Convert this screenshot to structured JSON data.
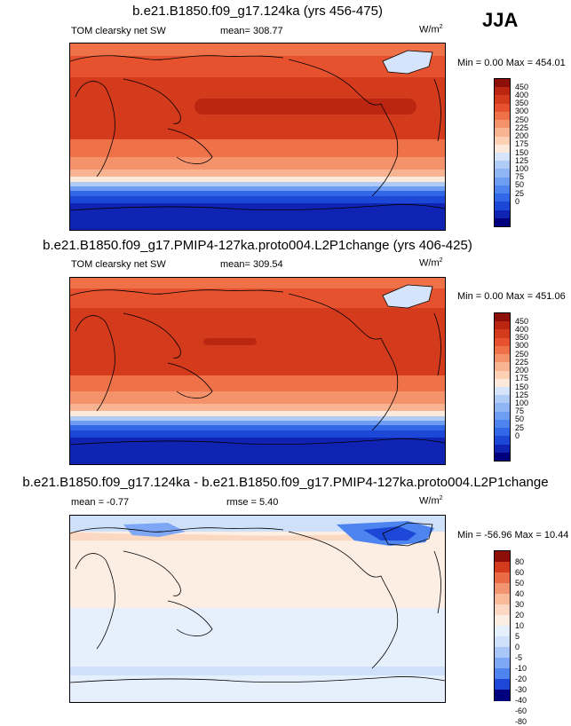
{
  "season": "JJA",
  "units": "W/m",
  "units_sup": "2",
  "colors": {
    "abs": [
      "#00007e",
      "#0f24b3",
      "#1d47d6",
      "#3168e8",
      "#4e84f0",
      "#6e9df4",
      "#8fb5f5",
      "#b0cbf6",
      "#d5e4fb",
      "#fde9dc",
      "#fbd0b5",
      "#f8b390",
      "#f4936b",
      "#ef7148",
      "#e6522d",
      "#d43a1c",
      "#bb2612",
      "#8e0f0a"
    ],
    "diff": [
      "#00007e",
      "#1d47d6",
      "#4e84f0",
      "#7ea8f5",
      "#a8c6f7",
      "#cfe0fb",
      "#e6f0fd",
      "#fdeee3",
      "#fbd8c2",
      "#f8ba99",
      "#f39470",
      "#ea6a45",
      "#d43a1c",
      "#8e0f0a"
    ]
  },
  "chart_data": [
    {
      "type": "heatmap",
      "title": "b.e21.B1850.f09_g17.124ka (yrs 456-475)",
      "left_label": "TOM clearsky net SW",
      "mean_label": "mean= 308.77",
      "minmax_label": "Min =   0.00 Max = 454.01",
      "min": 0.0,
      "max": 454.01,
      "mean": 308.77,
      "colorbar_ticks": [
        "450",
        "400",
        "350",
        "300",
        "250",
        "225",
        "200",
        "175",
        "150",
        "125",
        "100",
        "75",
        "50",
        "25",
        "0"
      ]
    },
    {
      "type": "heatmap",
      "title": "b.e21.B1850.f09_g17.PMIP4-127ka.proto004.L2P1change (yrs 406-425)",
      "left_label": "TOM clearsky net SW",
      "mean_label": "mean= 309.54",
      "minmax_label": "Min =   0.00 Max = 451.06",
      "min": 0.0,
      "max": 451.06,
      "mean": 309.54,
      "colorbar_ticks": [
        "450",
        "400",
        "350",
        "300",
        "250",
        "225",
        "200",
        "175",
        "150",
        "125",
        "100",
        "75",
        "50",
        "25",
        "0"
      ]
    },
    {
      "type": "heatmap",
      "title": "b.e21.B1850.f09_g17.124ka - b.e21.B1850.f09_g17.PMIP4-127ka.proto004.L2P1change",
      "left_label": "mean =  -0.77",
      "mean_label": "rmse =   5.40",
      "minmax_label": "Min = -56.96 Max =  10.44",
      "min": -56.96,
      "max": 10.44,
      "mean": -0.77,
      "rmse": 5.4,
      "colorbar_ticks": [
        "80",
        "60",
        "50",
        "40",
        "30",
        "20",
        "10",
        "5",
        "0",
        "-5",
        "-10",
        "-20",
        "-30",
        "-40",
        "-60",
        "-80"
      ]
    }
  ]
}
